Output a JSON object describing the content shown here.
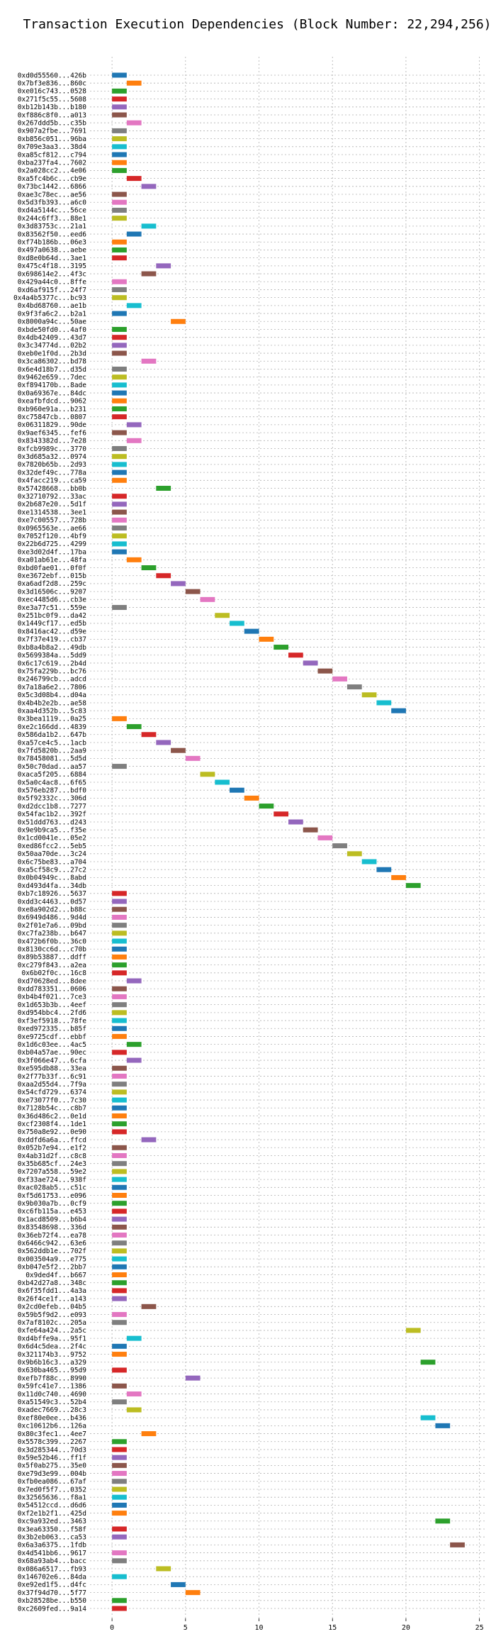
{
  "chart_data": {
    "type": "bar",
    "orientation": "horizontal",
    "title": "Transaction Execution Dependencies (Block Number: 22,294,256)",
    "xlabel": "",
    "ylabel": "",
    "xlim": [
      -1.5,
      25.5
    ],
    "xticks": [
      0,
      5,
      10,
      15,
      20,
      25
    ],
    "grid": true,
    "palette": [
      "#1f77b4",
      "#ff7f0e",
      "#2ca02c",
      "#d62728",
      "#9467bd",
      "#8c564b",
      "#e377c2",
      "#7f7f7f",
      "#bcbd22",
      "#17becf"
    ],
    "transactions": [
      {
        "label": "0xd0d55560...426b",
        "start": 0
      },
      {
        "label": "0x7bf3e836...860c",
        "start": 1
      },
      {
        "label": "0xe016c743...0528",
        "start": 0
      },
      {
        "label": "0x271f5c55...5608",
        "start": 0
      },
      {
        "label": "0xb12b143b...b180",
        "start": 0
      },
      {
        "label": "0xf886c8f0...a013",
        "start": 0
      },
      {
        "label": "0x267ddd5b...c35b",
        "start": 1
      },
      {
        "label": "0x907a2fbe...7691",
        "start": 0
      },
      {
        "label": "0xb856c051...96ba",
        "start": 0
      },
      {
        "label": "0x709e3aa3...38d4",
        "start": 0
      },
      {
        "label": "0xa85cf812...c794",
        "start": 0
      },
      {
        "label": "0xba237fa4...7602",
        "start": 0
      },
      {
        "label": "0x2a028cc2...4e06",
        "start": 0
      },
      {
        "label": "0xa5fc4b6c...cb9e",
        "start": 1
      },
      {
        "label": "0x73bc1442...6866",
        "start": 2
      },
      {
        "label": "0xae3c78ec...ae56",
        "start": 0
      },
      {
        "label": "0x5d3fb393...a6c0",
        "start": 0
      },
      {
        "label": "0xd4a5144c...56ce",
        "start": 0
      },
      {
        "label": "0x244c6ff3...88e1",
        "start": 0
      },
      {
        "label": "0x3d83753c...21a1",
        "start": 2
      },
      {
        "label": "0x83562f50...eed6",
        "start": 1
      },
      {
        "label": "0xf74b186b...06e3",
        "start": 0
      },
      {
        "label": "0x497a0638...aebe",
        "start": 0
      },
      {
        "label": "0xd8e0b64d...3ae1",
        "start": 0
      },
      {
        "label": "0x475c4f18...3195",
        "start": 3
      },
      {
        "label": "0x698614e2...4f3c",
        "start": 2
      },
      {
        "label": "0x429a44c0...8ffe",
        "start": 0
      },
      {
        "label": "0xd6af915f...24f7",
        "start": 0
      },
      {
        "label": "0x4a4b5377c...bc93",
        "start": 0
      },
      {
        "label": "0x4bd68760...ae1b",
        "start": 1
      },
      {
        "label": "0x9f3fa6c2...b2a1",
        "start": 0
      },
      {
        "label": "0x8000a94c...50ae",
        "start": 4
      },
      {
        "label": "0xbde50fd0...4af0",
        "start": 0
      },
      {
        "label": "0x4db42409...43d7",
        "start": 0
      },
      {
        "label": "0x3c34774d...02b2",
        "start": 0
      },
      {
        "label": "0xeb0e1f0d...2b3d",
        "start": 0
      },
      {
        "label": "0x3ca86302...bd78",
        "start": 2
      },
      {
        "label": "0x6e4d18b7...d35d",
        "start": 0
      },
      {
        "label": "0x9462e659...7dec",
        "start": 0
      },
      {
        "label": "0xf894170b...8ade",
        "start": 0
      },
      {
        "label": "0x0a69367e...84dc",
        "start": 0
      },
      {
        "label": "0xeafbfdcd...9062",
        "start": 0
      },
      {
        "label": "0xb960e91a...b231",
        "start": 0
      },
      {
        "label": "0xc75847cb...0807",
        "start": 0
      },
      {
        "label": "0x06311829...90de",
        "start": 1
      },
      {
        "label": "0x9aef6345...fef6",
        "start": 0
      },
      {
        "label": "0x8343382d...7e28",
        "start": 1
      },
      {
        "label": "0xfcb9989c...3770",
        "start": 0
      },
      {
        "label": "0x3d685a32...0974",
        "start": 0
      },
      {
        "label": "0x7820b65b...2d93",
        "start": 0
      },
      {
        "label": "0x32def49c...778a",
        "start": 0
      },
      {
        "label": "0x4facc219...ca59",
        "start": 0
      },
      {
        "label": "0x57428668...bb0b",
        "start": 3
      },
      {
        "label": "0x32710792...33ac",
        "start": 0
      },
      {
        "label": "0x2b687e20...5d1f",
        "start": 0
      },
      {
        "label": "0xe1314538...3ee1",
        "start": 0
      },
      {
        "label": "0xe7c00557...728b",
        "start": 0
      },
      {
        "label": "0x0965563e...ae66",
        "start": 0
      },
      {
        "label": "0x7052f120...4bf9",
        "start": 0
      },
      {
        "label": "0x22b6d725...4299",
        "start": 0
      },
      {
        "label": "0xe3d02d4f...17ba",
        "start": 0
      },
      {
        "label": "0xa01ab61e...48fa",
        "start": 1
      },
      {
        "label": "0xbd0fae01...0f0f",
        "start": 2
      },
      {
        "label": "0xe3672ebf...015b",
        "start": 3
      },
      {
        "label": "0xa6adf2d8...259c",
        "start": 4
      },
      {
        "label": "0x3d16506c...9207",
        "start": 5
      },
      {
        "label": "0xec4485d6...cb3e",
        "start": 6
      },
      {
        "label": "0xe3a77c51...559e",
        "start": 0
      },
      {
        "label": "0x251bc0f9...da42",
        "start": 7
      },
      {
        "label": "0x1449cf17...ed5b",
        "start": 8
      },
      {
        "label": "0x8416ac42...d59e",
        "start": 9
      },
      {
        "label": "0x7f37e419...cb37",
        "start": 10
      },
      {
        "label": "0xb8a4b8a2...49db",
        "start": 11
      },
      {
        "label": "0x5699384a...5dd9",
        "start": 12
      },
      {
        "label": "0x6c17c619...2b4d",
        "start": 13
      },
      {
        "label": "0x75fa229b...bc76",
        "start": 14
      },
      {
        "label": "0x246799cb...adcd",
        "start": 15
      },
      {
        "label": "0x7a18a6e2...7806",
        "start": 16
      },
      {
        "label": "0x5c3d08b4...d04a",
        "start": 17
      },
      {
        "label": "0x4b4b2e2b...ae58",
        "start": 18
      },
      {
        "label": "0xaa4d352b...5c83",
        "start": 19
      },
      {
        "label": "0x3bea1119...0a25",
        "start": 0
      },
      {
        "label": "0xe2c166dd...4839",
        "start": 1
      },
      {
        "label": "0x586da1b2...647b",
        "start": 2
      },
      {
        "label": "0xa57ce4c5...1acb",
        "start": 3
      },
      {
        "label": "0x7fd5820b...2aa9",
        "start": 4
      },
      {
        "label": "0x78458081...5d5d",
        "start": 5
      },
      {
        "label": "0x50c70dad...aa57",
        "start": 0
      },
      {
        "label": "0xaca5f205...6884",
        "start": 6
      },
      {
        "label": "0x5a0c4ac8...6f65",
        "start": 7
      },
      {
        "label": "0x576eb287...bdf0",
        "start": 8
      },
      {
        "label": "0x5f92332c...306d",
        "start": 9
      },
      {
        "label": "0xd2dcc1b8...7277",
        "start": 10
      },
      {
        "label": "0x54fac1b2...392f",
        "start": 11
      },
      {
        "label": "0x51ddd763...d243",
        "start": 12
      },
      {
        "label": "0x9e9b9ca5...f35e",
        "start": 13
      },
      {
        "label": "0x1cd0041e...05e2",
        "start": 14
      },
      {
        "label": "0xed86fcc2...5eb5",
        "start": 15
      },
      {
        "label": "0x50aa70de...3c24",
        "start": 16
      },
      {
        "label": "0x6c75be83...a704",
        "start": 17
      },
      {
        "label": "0xa5cf58c9...27c2",
        "start": 18
      },
      {
        "label": "0x0b04949c...8abd",
        "start": 19
      },
      {
        "label": "0xd493d4fa...34db",
        "start": 20
      },
      {
        "label": "0xb7c18926...5637",
        "start": 0
      },
      {
        "label": "0xdd3c4463...0d57",
        "start": 0
      },
      {
        "label": "0xe8a902d2...b88c",
        "start": 0
      },
      {
        "label": "0x6949d486...9d4d",
        "start": 0
      },
      {
        "label": "0x2f01e7a6...09bd",
        "start": 0
      },
      {
        "label": "0xc7fa238b...b647",
        "start": 0
      },
      {
        "label": "0x472b6f0b...36c0",
        "start": 0
      },
      {
        "label": "0x8130cc6d...c70b",
        "start": 0
      },
      {
        "label": "0x89b53887...ddff",
        "start": 0
      },
      {
        "label": "0xc279f843...a2ea",
        "start": 0
      },
      {
        "label": "0x6b02f0c...16c8",
        "start": 0
      },
      {
        "label": "0xd70628ed...8dee",
        "start": 1
      },
      {
        "label": "0xdd783351...0606",
        "start": 0
      },
      {
        "label": "0xb4b4f021...7ce3",
        "start": 0
      },
      {
        "label": "0x1d653b3b...4eef",
        "start": 0
      },
      {
        "label": "0xd954bbc4...2fd6",
        "start": 0
      },
      {
        "label": "0xf3ef5918...78fe",
        "start": 0
      },
      {
        "label": "0xed972335...b85f",
        "start": 0
      },
      {
        "label": "0xe9725cdf...ebbf",
        "start": 0
      },
      {
        "label": "0x1d6c03ee...4ac5",
        "start": 1
      },
      {
        "label": "0xb04a57ae...90ec",
        "start": 0
      },
      {
        "label": "0x3f066e47...6cfa",
        "start": 1
      },
      {
        "label": "0xe595db88...33ea",
        "start": 0
      },
      {
        "label": "0x2f77b33f...6c91",
        "start": 0
      },
      {
        "label": "0xaa2d55d4...7f9a",
        "start": 0
      },
      {
        "label": "0x54cfd729...6374",
        "start": 0
      },
      {
        "label": "0xe73077f0...7c30",
        "start": 0
      },
      {
        "label": "0x7128b54c...c8b7",
        "start": 0
      },
      {
        "label": "0x36d486c2...0e1d",
        "start": 0
      },
      {
        "label": "0xcf2308f4...1de1",
        "start": 0
      },
      {
        "label": "0x750a8e92...0e90",
        "start": 0
      },
      {
        "label": "0xddfd6a6a...ffcd",
        "start": 2
      },
      {
        "label": "0x052b7e94...e1f2",
        "start": 0
      },
      {
        "label": "0x4ab31d2f...c8c8",
        "start": 0
      },
      {
        "label": "0x35b685cf...24e3",
        "start": 0
      },
      {
        "label": "0x7207a558...59e2",
        "start": 0
      },
      {
        "label": "0xf33ae724...938f",
        "start": 0
      },
      {
        "label": "0xac028ab5...c51c",
        "start": 0
      },
      {
        "label": "0xf5d61753...e096",
        "start": 0
      },
      {
        "label": "0x9b030a7b...0cf9",
        "start": 0
      },
      {
        "label": "0xc6fb115a...e453",
        "start": 0
      },
      {
        "label": "0x1acd8509...b6b4",
        "start": 0
      },
      {
        "label": "0x83548698...336d",
        "start": 0
      },
      {
        "label": "0x36eb72f4...ea78",
        "start": 0
      },
      {
        "label": "0x6466c942...63e6",
        "start": 0
      },
      {
        "label": "0x562ddb1e...702f",
        "start": 0
      },
      {
        "label": "0x003504a9...e775",
        "start": 0
      },
      {
        "label": "0xb047e5f2...2bb7",
        "start": 0
      },
      {
        "label": "0x9ded4f...b667",
        "start": 0
      },
      {
        "label": "0xb42d27a8...348c",
        "start": 0
      },
      {
        "label": "0x6f35fdd1...4a3a",
        "start": 0
      },
      {
        "label": "0x26f4ce1f...a143",
        "start": 0
      },
      {
        "label": "0x2cd0efeb...04b5",
        "start": 2
      },
      {
        "label": "0x59b5f9d2...e093",
        "start": 0
      },
      {
        "label": "0x7af8102c...205a",
        "start": 0
      },
      {
        "label": "0xfe64a424...2a5c",
        "start": 20
      },
      {
        "label": "0xd4bffe9a...95f1",
        "start": 1
      },
      {
        "label": "0x6d4c5dea...2f4c",
        "start": 0
      },
      {
        "label": "0x321174b3...9752",
        "start": 0
      },
      {
        "label": "0x9b6b16c3...a329",
        "start": 21
      },
      {
        "label": "0x630ba465...95d9",
        "start": 0
      },
      {
        "label": "0xefb7f88c...8990",
        "start": 5
      },
      {
        "label": "0x59fc41e7...1386",
        "start": 0
      },
      {
        "label": "0x11d0c740...4690",
        "start": 1
      },
      {
        "label": "0xa51549c3...52b4",
        "start": 0
      },
      {
        "label": "0xadec7669...28c3",
        "start": 1
      },
      {
        "label": "0xef80e0ee...b436",
        "start": 21
      },
      {
        "label": "0xc10612b6...126a",
        "start": 22
      },
      {
        "label": "0x80c3fec1...4ee7",
        "start": 2
      },
      {
        "label": "0x5578c399...2267",
        "start": 0
      },
      {
        "label": "0x3d285344...70d3",
        "start": 0
      },
      {
        "label": "0x59e52b46...ff1f",
        "start": 0
      },
      {
        "label": "0x5f0ab275...35e0",
        "start": 0
      },
      {
        "label": "0xe79d3e99...004b",
        "start": 0
      },
      {
        "label": "0xfb0ea086...67af",
        "start": 0
      },
      {
        "label": "0x7ed0f5f7...0352",
        "start": 0
      },
      {
        "label": "0x32565636...f8a1",
        "start": 0
      },
      {
        "label": "0x54512ccd...d6d6",
        "start": 0
      },
      {
        "label": "0xf2e1b2f1...425d",
        "start": 0
      },
      {
        "label": "0xc9a932ed...3463",
        "start": 22
      },
      {
        "label": "0x3ea63350...f58f",
        "start": 0
      },
      {
        "label": "0x3b2eb063...ca53",
        "start": 0
      },
      {
        "label": "0x6a3a6375...1fdb",
        "start": 23
      },
      {
        "label": "0x4d541bb6...9617",
        "start": 0
      },
      {
        "label": "0x68a93ab4...bacc",
        "start": 0
      },
      {
        "label": "0x086a6517...fb93",
        "start": 3
      },
      {
        "label": "0x146702e6...84da",
        "start": 0
      },
      {
        "label": "0xe92ed1f5...d4fc",
        "start": 4
      },
      {
        "label": "0x37f94d70...5f77",
        "start": 5
      },
      {
        "label": "0xb28528be...b550",
        "start": 0
      },
      {
        "label": "0xc2609fed...9a14",
        "start": 0
      }
    ]
  }
}
